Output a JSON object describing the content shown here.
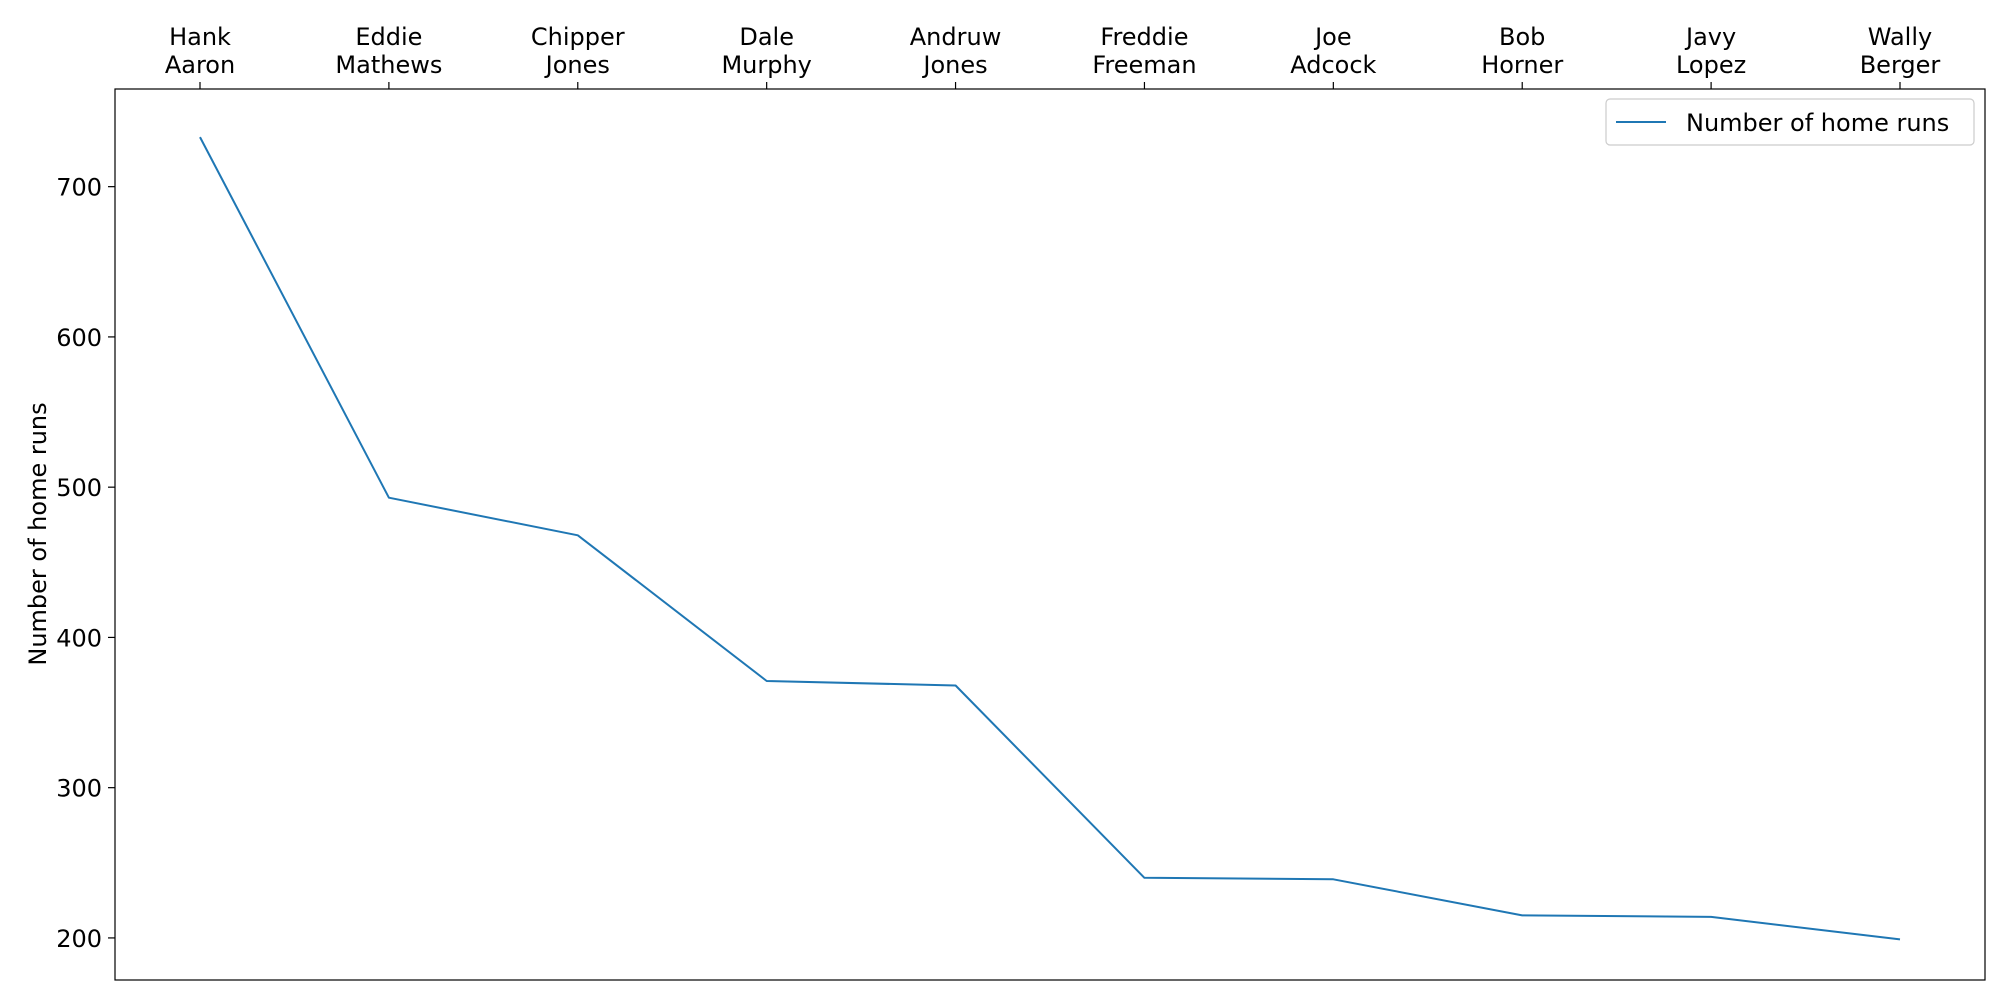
{
  "chart_data": {
    "type": "line",
    "title": "",
    "xlabel": "",
    "ylabel": "Number of home runs",
    "x_axis_position": "top",
    "categories": [
      [
        "Hank",
        "Aaron"
      ],
      [
        "Eddie",
        "Mathews"
      ],
      [
        "Chipper",
        "Jones"
      ],
      [
        "Dale",
        "Murphy"
      ],
      [
        "Andruw",
        "Jones"
      ],
      [
        "Freddie",
        "Freeman"
      ],
      [
        "Joe",
        "Adcock"
      ],
      [
        "Bob",
        "Horner"
      ],
      [
        "Javy",
        "Lopez"
      ],
      [
        "Wally",
        "Berger"
      ]
    ],
    "series": [
      {
        "name": "Number of home runs",
        "color": "#1f77b4",
        "values": [
          733,
          493,
          468,
          371,
          368,
          240,
          239,
          215,
          214,
          199
        ]
      }
    ],
    "ylim": [
      172,
      765
    ],
    "yticks": [
      200,
      300,
      400,
      500,
      600,
      700
    ],
    "grid": false,
    "legend_position": "top-right"
  }
}
